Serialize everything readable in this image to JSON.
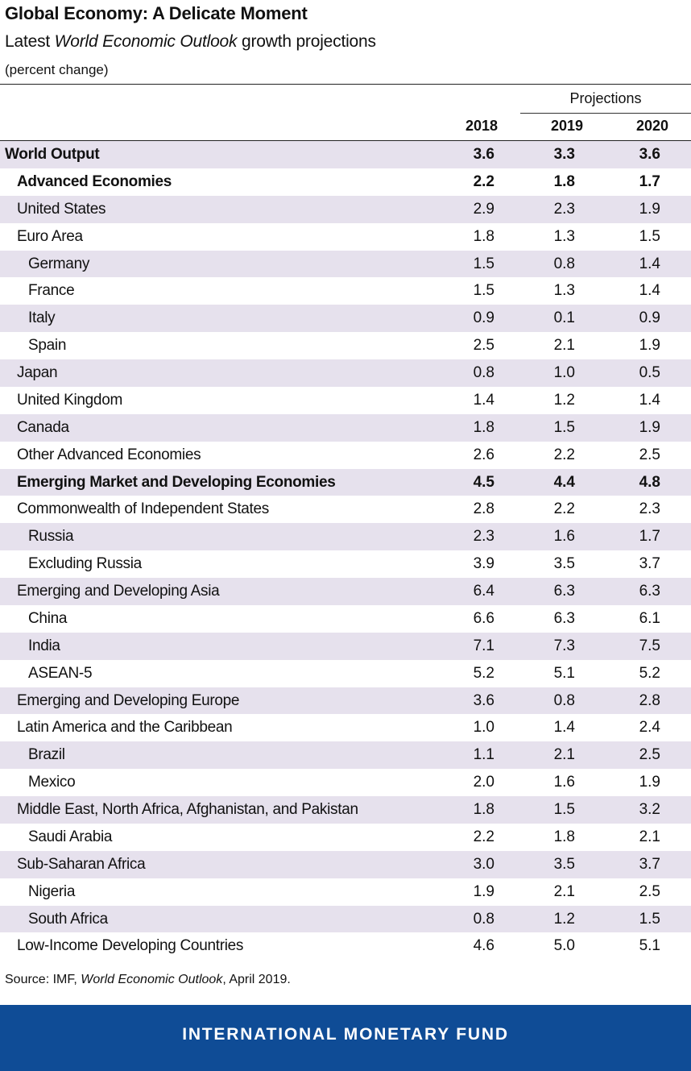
{
  "header": {
    "title": "Global Economy: A Delicate Moment",
    "subtitle_prefix": "Latest ",
    "subtitle_italic": "World Economic Outlook",
    "subtitle_suffix": " growth projections",
    "unit": "(percent change)",
    "projections_label": "Projections"
  },
  "chart_data": {
    "type": "table",
    "title": "Global Economy: A Delicate Moment",
    "columns": [
      "2018",
      "2019",
      "2020"
    ],
    "rows": [
      {
        "label": "World Output",
        "level": 0,
        "bold": true,
        "values": [
          "3.6",
          "3.3",
          "3.6"
        ]
      },
      {
        "label": "Advanced Economies",
        "level": 1,
        "bold": true,
        "values": [
          "2.2",
          "1.8",
          "1.7"
        ]
      },
      {
        "label": "United States",
        "level": 1,
        "bold": false,
        "values": [
          "2.9",
          "2.3",
          "1.9"
        ]
      },
      {
        "label": "Euro Area",
        "level": 1,
        "bold": false,
        "values": [
          "1.8",
          "1.3",
          "1.5"
        ]
      },
      {
        "label": "Germany",
        "level": 2,
        "bold": false,
        "values": [
          "1.5",
          "0.8",
          "1.4"
        ]
      },
      {
        "label": "France",
        "level": 2,
        "bold": false,
        "values": [
          "1.5",
          "1.3",
          "1.4"
        ]
      },
      {
        "label": "Italy",
        "level": 2,
        "bold": false,
        "values": [
          "0.9",
          "0.1",
          "0.9"
        ]
      },
      {
        "label": "Spain",
        "level": 2,
        "bold": false,
        "values": [
          "2.5",
          "2.1",
          "1.9"
        ]
      },
      {
        "label": "Japan",
        "level": 1,
        "bold": false,
        "values": [
          "0.8",
          "1.0",
          "0.5"
        ]
      },
      {
        "label": "United Kingdom",
        "level": 1,
        "bold": false,
        "values": [
          "1.4",
          "1.2",
          "1.4"
        ]
      },
      {
        "label": "Canada",
        "level": 1,
        "bold": false,
        "values": [
          "1.8",
          "1.5",
          "1.9"
        ]
      },
      {
        "label": "Other Advanced Economies",
        "level": 1,
        "bold": false,
        "values": [
          "2.6",
          "2.2",
          "2.5"
        ]
      },
      {
        "label": "Emerging Market and Developing Economies",
        "level": 1,
        "bold": true,
        "values": [
          "4.5",
          "4.4",
          "4.8"
        ]
      },
      {
        "label": "Commonwealth of Independent States",
        "level": 1,
        "bold": false,
        "values": [
          "2.8",
          "2.2",
          "2.3"
        ]
      },
      {
        "label": "Russia",
        "level": 2,
        "bold": false,
        "values": [
          "2.3",
          "1.6",
          "1.7"
        ]
      },
      {
        "label": "Excluding Russia",
        "level": 2,
        "bold": false,
        "values": [
          "3.9",
          "3.5",
          "3.7"
        ]
      },
      {
        "label": "Emerging and Developing Asia",
        "level": 1,
        "bold": false,
        "values": [
          "6.4",
          "6.3",
          "6.3"
        ]
      },
      {
        "label": "China",
        "level": 2,
        "bold": false,
        "values": [
          "6.6",
          "6.3",
          "6.1"
        ]
      },
      {
        "label": "India",
        "level": 2,
        "bold": false,
        "values": [
          "7.1",
          "7.3",
          "7.5"
        ]
      },
      {
        "label": "ASEAN-5",
        "level": 2,
        "bold": false,
        "values": [
          "5.2",
          "5.1",
          "5.2"
        ]
      },
      {
        "label": "Emerging and Developing Europe",
        "level": 1,
        "bold": false,
        "values": [
          "3.6",
          "0.8",
          "2.8"
        ]
      },
      {
        "label": "Latin America and the Caribbean",
        "level": 1,
        "bold": false,
        "values": [
          "1.0",
          "1.4",
          "2.4"
        ]
      },
      {
        "label": "Brazil",
        "level": 2,
        "bold": false,
        "values": [
          "1.1",
          "2.1",
          "2.5"
        ]
      },
      {
        "label": "Mexico",
        "level": 2,
        "bold": false,
        "values": [
          "2.0",
          "1.6",
          "1.9"
        ]
      },
      {
        "label": "Middle East, North Africa, Afghanistan, and Pakistan",
        "level": 1,
        "bold": false,
        "values": [
          "1.8",
          "1.5",
          "3.2"
        ]
      },
      {
        "label": "Saudi Arabia",
        "level": 2,
        "bold": false,
        "values": [
          "2.2",
          "1.8",
          "2.1"
        ]
      },
      {
        "label": "Sub-Saharan Africa",
        "level": 1,
        "bold": false,
        "values": [
          "3.0",
          "3.5",
          "3.7"
        ]
      },
      {
        "label": "Nigeria",
        "level": 2,
        "bold": false,
        "values": [
          "1.9",
          "2.1",
          "2.5"
        ]
      },
      {
        "label": "South Africa",
        "level": 2,
        "bold": false,
        "values": [
          "0.8",
          "1.2",
          "1.5"
        ]
      },
      {
        "label": "Low-Income Developing Countries",
        "level": 1,
        "bold": false,
        "values": [
          "4.6",
          "5.0",
          "5.1"
        ]
      }
    ]
  },
  "source": {
    "prefix": "Source: IMF, ",
    "italic": "World Economic Outlook",
    "suffix": ", April 2019."
  },
  "footer": {
    "text": "INTERNATIONAL MONETARY FUND"
  },
  "colors": {
    "shade": "#e6e1ed",
    "footer_bg": "#0f4c96"
  }
}
